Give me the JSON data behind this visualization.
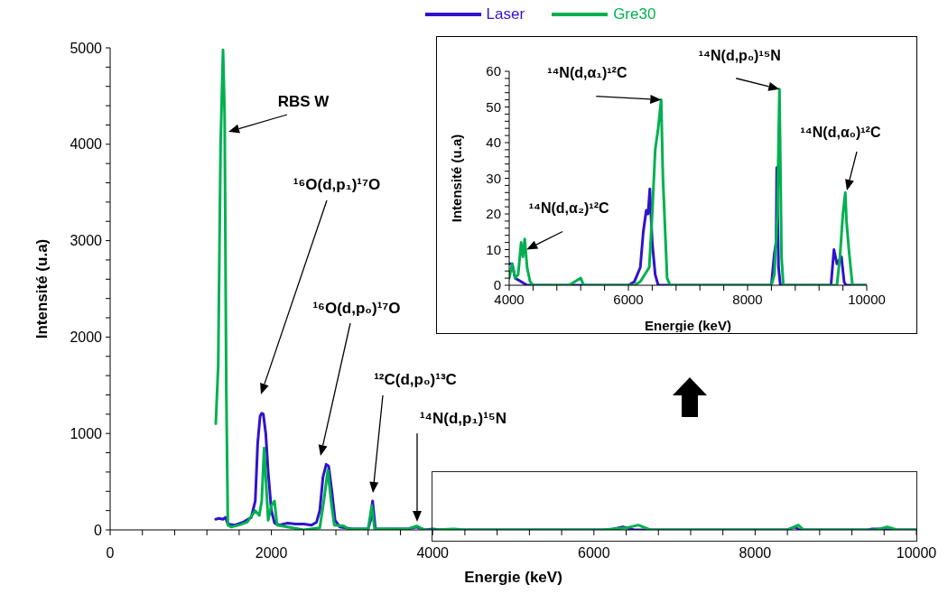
{
  "chart_data": [
    {
      "type": "line",
      "xlabel": "Energie (keV)",
      "ylabel": "Intensité (u.a)",
      "xlim": [
        0,
        10000
      ],
      "ylim": [
        0,
        5000
      ],
      "xticks": [
        0,
        {
          "value": 400,
          "label": null
        },
        {
          "value": 800,
          "label": null
        },
        {
          "value": 1200,
          "label": null
        },
        {
          "value": 1600,
          "label": null
        },
        2000,
        {
          "value": 2400,
          "label": null
        },
        {
          "value": 2800,
          "label": null
        },
        {
          "value": 3200,
          "label": null
        },
        {
          "value": 3600,
          "label": null
        },
        4000,
        {
          "value": 4400,
          "label": null
        },
        {
          "value": 4800,
          "label": null
        },
        {
          "value": 5200,
          "label": null
        },
        {
          "value": 5600,
          "label": null
        },
        6000,
        {
          "value": 6400,
          "label": null
        },
        {
          "value": 6800,
          "label": null
        },
        {
          "value": 7200,
          "label": null
        },
        {
          "value": 7600,
          "label": null
        },
        8000,
        {
          "value": 8400,
          "label": null
        },
        {
          "value": 8800,
          "label": null
        },
        {
          "value": 9200,
          "label": null
        },
        {
          "value": 9600,
          "label": null
        },
        10000
      ],
      "yticks": [
        0,
        {
          "value": 200,
          "label": null
        },
        {
          "value": 400,
          "label": null
        },
        {
          "value": 600,
          "label": null
        },
        {
          "value": 800,
          "label": null
        },
        1000,
        {
          "value": 1200,
          "label": null
        },
        {
          "value": 1400,
          "label": null
        },
        {
          "value": 1600,
          "label": null
        },
        {
          "value": 1800,
          "label": null
        },
        2000,
        {
          "value": 2200,
          "label": null
        },
        {
          "value": 2400,
          "label": null
        },
        {
          "value": 2600,
          "label": null
        },
        {
          "value": 2800,
          "label": null
        },
        3000,
        {
          "value": 3200,
          "label": null
        },
        {
          "value": 3400,
          "label": null
        },
        {
          "value": 3600,
          "label": null
        },
        {
          "value": 3800,
          "label": null
        },
        4000,
        {
          "value": 4200,
          "label": null
        },
        {
          "value": 4400,
          "label": null
        },
        {
          "value": 4600,
          "label": null
        },
        {
          "value": 4800,
          "label": null
        },
        5000
      ],
      "legend": "top",
      "series": [
        {
          "name": "Laser",
          "color": "#2f14cc",
          "x": [
            1310,
            1350,
            1400,
            1430,
            1460,
            1550,
            1650,
            1750,
            1800,
            1830,
            1860,
            1880,
            1900,
            1930,
            1960,
            2000,
            2040,
            2100,
            2200,
            2300,
            2400,
            2500,
            2560,
            2600,
            2640,
            2680,
            2710,
            2750,
            2790,
            2850,
            3000,
            3200,
            3230,
            3255,
            3290,
            3500,
            3700,
            3800,
            3900,
            4000,
            4100,
            4300,
            6000,
            6200,
            6360,
            6500,
            8400,
            8490,
            8550,
            9400,
            9450,
            9575,
            9650,
            10000
          ],
          "values": [
            110,
            120,
            110,
            130,
            60,
            50,
            80,
            130,
            300,
            900,
            1180,
            1210,
            1200,
            1000,
            600,
            200,
            70,
            50,
            70,
            60,
            60,
            50,
            80,
            200,
            550,
            680,
            660,
            400,
            100,
            30,
            10,
            10,
            100,
            300,
            10,
            10,
            10,
            30,
            0,
            10,
            0,
            0,
            0,
            0,
            30,
            0,
            0,
            30,
            0,
            0,
            10,
            10,
            0,
            0
          ]
        },
        {
          "name": "Gre30",
          "color": "#00b050",
          "x": [
            1310,
            1340,
            1370,
            1400,
            1420,
            1440,
            1460,
            1500,
            1600,
            1700,
            1800,
            1850,
            1880,
            1910,
            1960,
            2000,
            2038,
            2070,
            2200,
            2400,
            2600,
            2650,
            2700,
            2740,
            2780,
            2900,
            2950,
            3000,
            3200,
            3245,
            3280,
            3700,
            3800,
            3900,
            4000,
            4260,
            4400,
            6100,
            6400,
            6550,
            6700,
            8400,
            8535,
            8600,
            9500,
            9640,
            9760,
            10000
          ],
          "values": [
            1100,
            1700,
            4000,
            4980,
            4300,
            1500,
            50,
            30,
            50,
            80,
            200,
            150,
            300,
            850,
            100,
            250,
            300,
            50,
            30,
            0,
            20,
            300,
            620,
            300,
            50,
            40,
            10,
            10,
            10,
            250,
            10,
            10,
            40,
            0,
            0,
            10,
            0,
            0,
            20,
            50,
            0,
            0,
            50,
            0,
            0,
            30,
            0,
            0
          ]
        }
      ],
      "annotations": [
        "RBS W",
        "¹⁶O(d,p₁)¹⁷O",
        "¹⁶O(d,p₀)¹⁷O",
        "¹²C(d,p₀)¹³C",
        "¹⁴N(d,p₁)¹⁵N"
      ]
    },
    {
      "type": "line",
      "xlabel": "Energie (keV)",
      "ylabel": "Intensité (u.a)",
      "xlim": [
        4000,
        10000
      ],
      "ylim": [
        0,
        60
      ],
      "xticks": [
        4000,
        {
          "value": 4400,
          "label": null
        },
        {
          "value": 4800,
          "label": null
        },
        {
          "value": 5200,
          "label": null
        },
        {
          "value": 5600,
          "label": null
        },
        6000,
        {
          "value": 6400,
          "label": null
        },
        {
          "value": 6800,
          "label": null
        },
        {
          "value": 7200,
          "label": null
        },
        {
          "value": 7600,
          "label": null
        },
        8000,
        {
          "value": 8400,
          "label": null
        },
        {
          "value": 8800,
          "label": null
        },
        {
          "value": 9200,
          "label": null
        },
        {
          "value": 9600,
          "label": null
        },
        10000
      ],
      "yticks": [
        0,
        {
          "value": 2,
          "label": null
        },
        {
          "value": 4,
          "label": null
        },
        {
          "value": 6,
          "label": null
        },
        {
          "value": 8,
          "label": null
        },
        10,
        {
          "value": 12,
          "label": null
        },
        {
          "value": 14,
          "label": null
        },
        {
          "value": 16,
          "label": null
        },
        {
          "value": 18,
          "label": null
        },
        20,
        {
          "value": 22,
          "label": null
        },
        {
          "value": 24,
          "label": null
        },
        {
          "value": 26,
          "label": null
        },
        {
          "value": 28,
          "label": null
        },
        30,
        {
          "value": 32,
          "label": null
        },
        {
          "value": 34,
          "label": null
        },
        {
          "value": 36,
          "label": null
        },
        {
          "value": 38,
          "label": null
        },
        40,
        {
          "value": 42,
          "label": null
        },
        {
          "value": 44,
          "label": null
        },
        {
          "value": 46,
          "label": null
        },
        {
          "value": 48,
          "label": null
        },
        50,
        {
          "value": 52,
          "label": null
        },
        {
          "value": 54,
          "label": null
        },
        {
          "value": 56,
          "label": null
        },
        {
          "value": 58,
          "label": null
        },
        60
      ],
      "series": [
        {
          "color": "#2f14cc",
          "x": [
            4000,
            4050,
            4100,
            4200,
            4300,
            6000,
            6100,
            6200,
            6250,
            6300,
            6330,
            6360,
            6400,
            6450,
            6500,
            8400,
            8450,
            8480,
            8490,
            8520,
            8550,
            9400,
            9450,
            9500,
            9575,
            9620,
            9650,
            10000
          ],
          "values": [
            6,
            6,
            2,
            1,
            0,
            0,
            1,
            5,
            15,
            21,
            20,
            27,
            12,
            3,
            0,
            0,
            9,
            12,
            33,
            5,
            0,
            0,
            10,
            6,
            8,
            1,
            0,
            0
          ]
        },
        {
          "color": "#00b050",
          "x": [
            4000,
            4050,
            4100,
            4150,
            4200,
            4230,
            4260,
            4300,
            4350,
            4400,
            5000,
            5200,
            5250,
            6100,
            6200,
            6350,
            6400,
            6450,
            6500,
            6550,
            6580,
            6650,
            6700,
            8400,
            8450,
            8500,
            8535,
            8570,
            8600,
            9500,
            9550,
            9600,
            9640,
            9660,
            9700,
            9760,
            10000
          ],
          "values": [
            2,
            6,
            2,
            3,
            12,
            8,
            13,
            5,
            1,
            0,
            0,
            2,
            0,
            0,
            1,
            5,
            20,
            38,
            44,
            52,
            30,
            2,
            0,
            0,
            3,
            20,
            55,
            8,
            0,
            0,
            8,
            20,
            26,
            18,
            10,
            0,
            0
          ]
        }
      ],
      "annotations": [
        {
          "text": "¹⁴N(d,α₁)¹²C",
          "x": 6550,
          "y": 52
        },
        {
          "text": "¹⁴N(d,p₀)¹⁵N",
          "x": 8535,
          "y": 55
        },
        "¹⁴N(d,α₀)¹²C",
        {
          "text": "¹⁴N(d,α₂)¹²C",
          "x": 4290,
          "y": 10
        }
      ]
    }
  ]
}
